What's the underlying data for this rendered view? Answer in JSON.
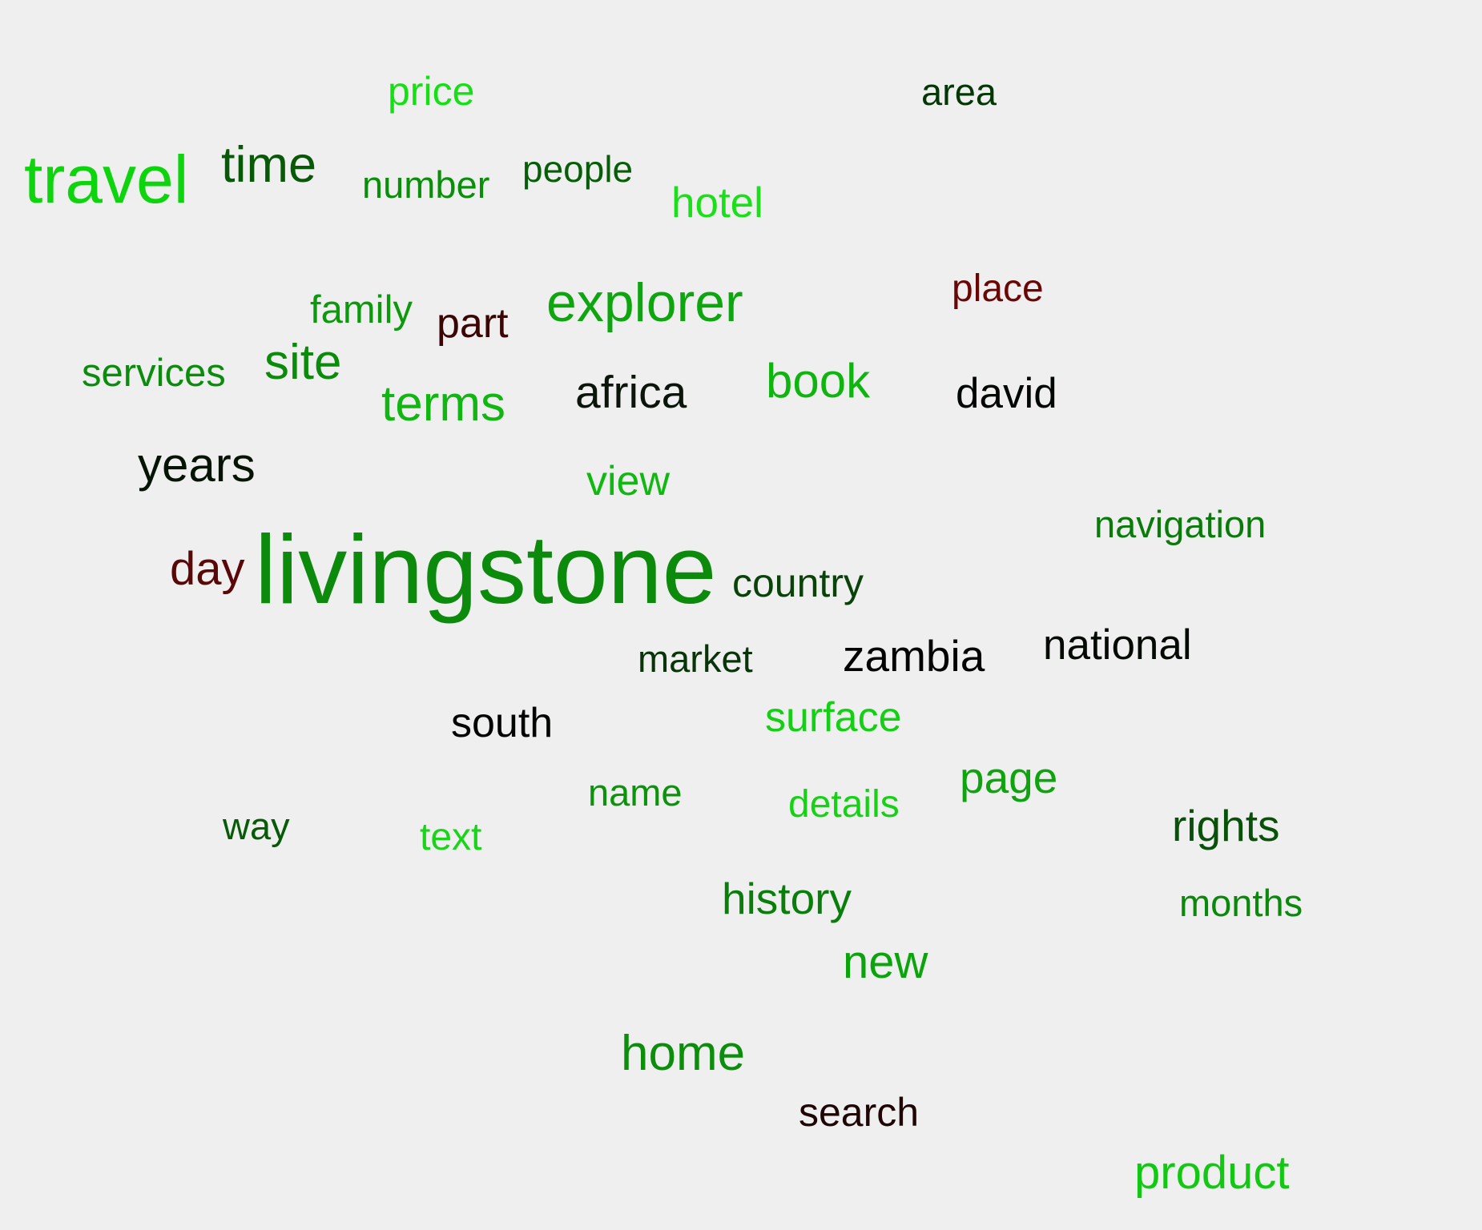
{
  "words": [
    {
      "text": "livingstone",
      "color": "#0b8a0b"
    },
    {
      "text": "travel",
      "color": "#0dd40d"
    },
    {
      "text": "time",
      "color": "#075807"
    },
    {
      "text": "price",
      "color": "#14e014"
    },
    {
      "text": "area",
      "color": "#053605"
    },
    {
      "text": "number",
      "color": "#0a8f0a"
    },
    {
      "text": "people",
      "color": "#085d08"
    },
    {
      "text": "hotel",
      "color": "#19e019"
    },
    {
      "text": "place",
      "color": "#6a0606"
    },
    {
      "text": "explorer",
      "color": "#0ea60e"
    },
    {
      "text": "family",
      "color": "#0c990c"
    },
    {
      "text": "part",
      "color": "#3a0505"
    },
    {
      "text": "services",
      "color": "#0c8c0c"
    },
    {
      "text": "site",
      "color": "#0a8c0a"
    },
    {
      "text": "terms",
      "color": "#10b710"
    },
    {
      "text": "africa",
      "color": "#0b150b"
    },
    {
      "text": "book",
      "color": "#0fb50f"
    },
    {
      "text": "david",
      "color": "#030703"
    },
    {
      "text": "years",
      "color": "#061406"
    },
    {
      "text": "view",
      "color": "#12b812"
    },
    {
      "text": "navigation",
      "color": "#0a7a0a"
    },
    {
      "text": "day",
      "color": "#5a0707"
    },
    {
      "text": "country",
      "color": "#0a420a"
    },
    {
      "text": "market",
      "color": "#093409"
    },
    {
      "text": "zambia",
      "color": "#030303"
    },
    {
      "text": "national",
      "color": "#050a05"
    },
    {
      "text": "south",
      "color": "#030503"
    },
    {
      "text": "surface",
      "color": "#14d014"
    },
    {
      "text": "page",
      "color": "#0fa30f"
    },
    {
      "text": "name",
      "color": "#0b930b"
    },
    {
      "text": "details",
      "color": "#15d215"
    },
    {
      "text": "way",
      "color": "#075a07"
    },
    {
      "text": "text",
      "color": "#1ad41a"
    },
    {
      "text": "rights",
      "color": "#095009"
    },
    {
      "text": "history",
      "color": "#0a7e0a"
    },
    {
      "text": "months",
      "color": "#0a890a"
    },
    {
      "text": "new",
      "color": "#0ca40c"
    },
    {
      "text": "home",
      "color": "#0c8e0c"
    },
    {
      "text": "search",
      "color": "#1e0606"
    },
    {
      "text": "product",
      "color": "#13c813"
    }
  ]
}
